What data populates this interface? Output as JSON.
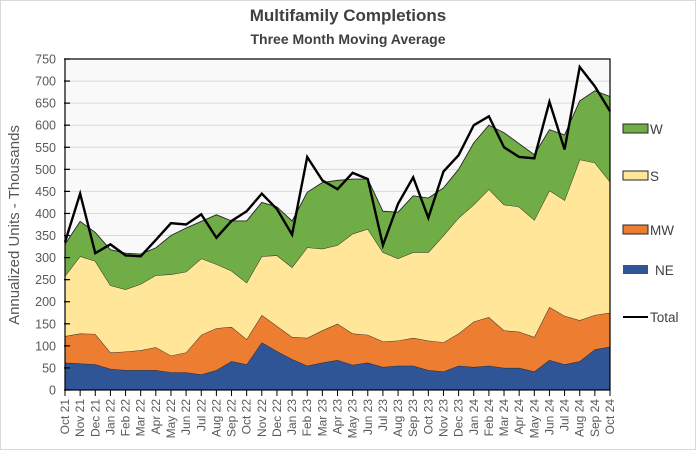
{
  "chart_data": {
    "type": "area",
    "stacked": true,
    "title": "Multifamily  Completions",
    "subtitle": "Three Month Moving Average",
    "xlabel": "",
    "ylabel": "Annualized  Units - Thousands",
    "ylim": [
      0,
      750
    ],
    "yticks": [
      0,
      50,
      100,
      150,
      200,
      250,
      300,
      350,
      400,
      450,
      500,
      550,
      600,
      650,
      700,
      750
    ],
    "grid": true,
    "legend_position": "right",
    "categories": [
      "Oct 21",
      "Nov 21",
      "Dec 21",
      "Jan 22",
      "Feb 22",
      "Mar 22",
      "Apr 22",
      "May 22",
      "Jun 22",
      "Jul 22",
      "Aug 22",
      "Sep 22",
      "Oct 22",
      "Nov 22",
      "Dec 22",
      "Jan 23",
      "Feb 23",
      "Mar 23",
      "Apr 23",
      "May 23",
      "Jun 23",
      "Jul 23",
      "Aug 23",
      "Sep 23",
      "Oct 23",
      "Nov 23",
      "Dec 23",
      "Jan 24",
      "Feb 24",
      "Mar 24",
      "Apr 24",
      "May 24",
      "Jun 24",
      "Jul 24",
      "Aug 24",
      "Sep 24",
      "Oct 24"
    ],
    "series": [
      {
        "name": "NE",
        "color": "#2f5597",
        "values": [
          62,
          60,
          58,
          48,
          45,
          45,
          45,
          40,
          40,
          35,
          45,
          65,
          58,
          108,
          88,
          70,
          55,
          62,
          68,
          57,
          62,
          52,
          55,
          55,
          45,
          42,
          55,
          52,
          55,
          50,
          50,
          42,
          68,
          58,
          65,
          92,
          98
        ]
      },
      {
        "name": "MW",
        "color": "#ed7d31",
        "values": [
          60,
          68,
          69,
          37,
          42,
          45,
          52,
          38,
          45,
          90,
          95,
          78,
          57,
          62,
          57,
          50,
          63,
          73,
          82,
          71,
          63,
          58,
          57,
          63,
          67,
          66,
          73,
          103,
          110,
          85,
          82,
          78,
          120,
          110,
          93,
          78,
          77
        ]
      },
      {
        "name": "S",
        "color": "#ffe699",
        "values": [
          136,
          175,
          165,
          152,
          141,
          150,
          163,
          184,
          183,
          173,
          145,
          127,
          128,
          133,
          160,
          158,
          205,
          185,
          178,
          226,
          240,
          202,
          186,
          194,
          200,
          242,
          262,
          265,
          290,
          285,
          283,
          265,
          264,
          262,
          364,
          345,
          297
        ]
      },
      {
        "name": "W",
        "color": "#70ad47",
        "values": [
          72,
          79,
          65,
          81,
          82,
          68,
          62,
          88,
          99,
          84,
          112,
          113,
          140,
          122,
          110,
          105,
          125,
          150,
          147,
          124,
          113,
          93,
          105,
          128,
          123,
          108,
          110,
          140,
          145,
          163,
          143,
          148,
          138,
          148,
          133,
          163,
          193
        ]
      }
    ],
    "total": {
      "name": "Total",
      "color": "#000000",
      "values": [
        335,
        445,
        310,
        330,
        305,
        303,
        340,
        378,
        375,
        398,
        345,
        383,
        405,
        445,
        410,
        352,
        528,
        475,
        455,
        492,
        478,
        328,
        422,
        482,
        390,
        495,
        532,
        600,
        620,
        550,
        528,
        525,
        653,
        545,
        732,
        688,
        632
      ]
    },
    "legend": [
      "W",
      "S",
      "MW",
      "NE",
      "Total"
    ]
  }
}
